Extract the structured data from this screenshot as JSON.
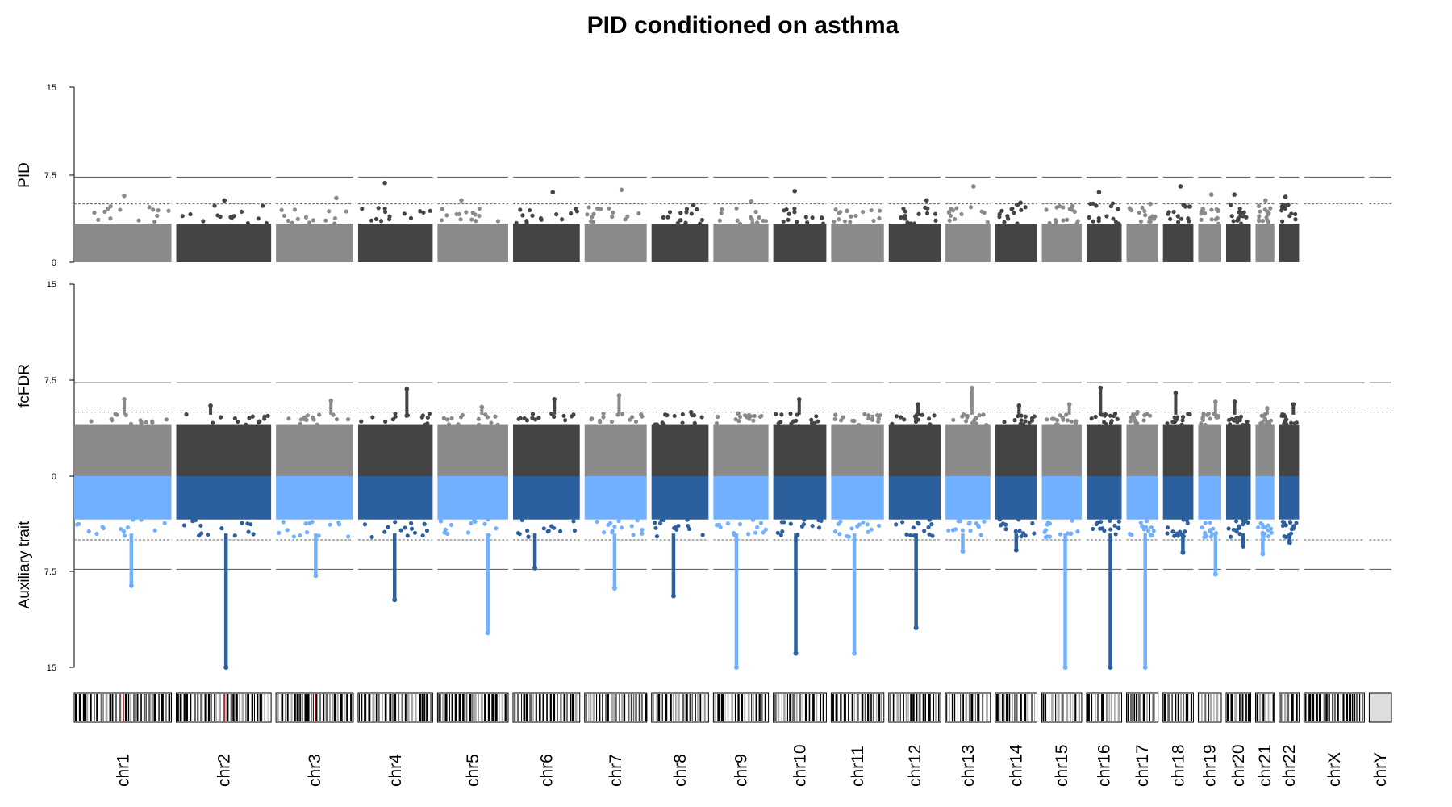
{
  "chart_data": {
    "type": "scatter",
    "title": "PID conditioned on asthma",
    "panels": [
      {
        "id": "pid",
        "ylabel": "PID",
        "ylim": [
          0,
          15
        ],
        "yticks": [
          "0",
          "7.5",
          "15"
        ],
        "threshold_solid": 7.3,
        "threshold_dashed": 5
      },
      {
        "id": "fcfdr",
        "ylabel": "fcFDR",
        "ylabel_lower": "Auxiliary trait",
        "ylim_upper": [
          0,
          15
        ],
        "ylim_lower": [
          0,
          15
        ],
        "yticks": [
          "15",
          "7.5",
          "0",
          "7.5",
          "15"
        ],
        "threshold_solid": 7.3,
        "threshold_dashed": 5
      }
    ],
    "series_colors": {
      "odd_top": "#8a8a8a",
      "even_top": "#444444",
      "odd_bottom": "#70b0ff",
      "even_bottom": "#2c5f9e"
    },
    "chromosomes": [
      {
        "label": "chr1",
        "size": 249,
        "pid_peak": 5.7,
        "fc_peak": 6.0,
        "aux_peak": 8.6
      },
      {
        "label": "chr2",
        "size": 243,
        "pid_peak": 5.3,
        "fc_peak": 5.5,
        "aux_peak": 15.0
      },
      {
        "label": "chr3",
        "size": 198,
        "pid_peak": 5.5,
        "fc_peak": 5.9,
        "aux_peak": 7.8
      },
      {
        "label": "chr4",
        "size": 191,
        "pid_peak": 6.8,
        "fc_peak": 6.8,
        "aux_peak": 9.7
      },
      {
        "label": "chr5",
        "size": 181,
        "pid_peak": 5.3,
        "fc_peak": 5.4,
        "aux_peak": 12.3
      },
      {
        "label": "chr6",
        "size": 171,
        "pid_peak": 6.0,
        "fc_peak": 6.0,
        "aux_peak": 7.2
      },
      {
        "label": "chr7",
        "size": 159,
        "pid_peak": 6.2,
        "fc_peak": 6.3,
        "aux_peak": 8.8
      },
      {
        "label": "chr8",
        "size": 146,
        "pid_peak": 4.9,
        "fc_peak": 5.0,
        "aux_peak": 9.4
      },
      {
        "label": "chr9",
        "size": 141,
        "pid_peak": 5.2,
        "fc_peak": 4.9,
        "aux_peak": 15.0
      },
      {
        "label": "chr10",
        "size": 136,
        "pid_peak": 6.1,
        "fc_peak": 6.0,
        "aux_peak": 13.9
      },
      {
        "label": "chr11",
        "size": 135,
        "pid_peak": 4.4,
        "fc_peak": 4.4,
        "aux_peak": 13.9
      },
      {
        "label": "chr12",
        "size": 133,
        "pid_peak": 5.3,
        "fc_peak": 5.6,
        "aux_peak": 11.9
      },
      {
        "label": "chr13",
        "size": 115,
        "pid_peak": 6.5,
        "fc_peak": 6.9,
        "aux_peak": 5.9
      },
      {
        "label": "chr14",
        "size": 107,
        "pid_peak": 5.1,
        "fc_peak": 5.5,
        "aux_peak": 5.8
      },
      {
        "label": "chr15",
        "size": 102,
        "pid_peak": 4.8,
        "fc_peak": 5.6,
        "aux_peak": 15.0
      },
      {
        "label": "chr16",
        "size": 90,
        "pid_peak": 6.0,
        "fc_peak": 6.9,
        "aux_peak": 15.0
      },
      {
        "label": "chr17",
        "size": 81,
        "pid_peak": 5.0,
        "fc_peak": 5.0,
        "aux_peak": 15.0
      },
      {
        "label": "chr18",
        "size": 78,
        "pid_peak": 6.5,
        "fc_peak": 6.5,
        "aux_peak": 6.0
      },
      {
        "label": "chr19",
        "size": 59,
        "pid_peak": 5.8,
        "fc_peak": 5.8,
        "aux_peak": 7.7
      },
      {
        "label": "chr20",
        "size": 63,
        "pid_peak": 5.8,
        "fc_peak": 5.8,
        "aux_peak": 5.5
      },
      {
        "label": "chr21",
        "size": 48,
        "pid_peak": 5.3,
        "fc_peak": 5.3,
        "aux_peak": 6.1
      },
      {
        "label": "chr22",
        "size": 51,
        "pid_peak": 5.6,
        "fc_peak": 5.6,
        "aux_peak": 5.2
      },
      {
        "label": "chrX",
        "size": 155,
        "pid_peak": null,
        "fc_peak": null,
        "aux_peak": null
      },
      {
        "label": "chrY",
        "size": 57,
        "pid_peak": null,
        "fc_peak": null,
        "aux_peak": null
      }
    ]
  }
}
